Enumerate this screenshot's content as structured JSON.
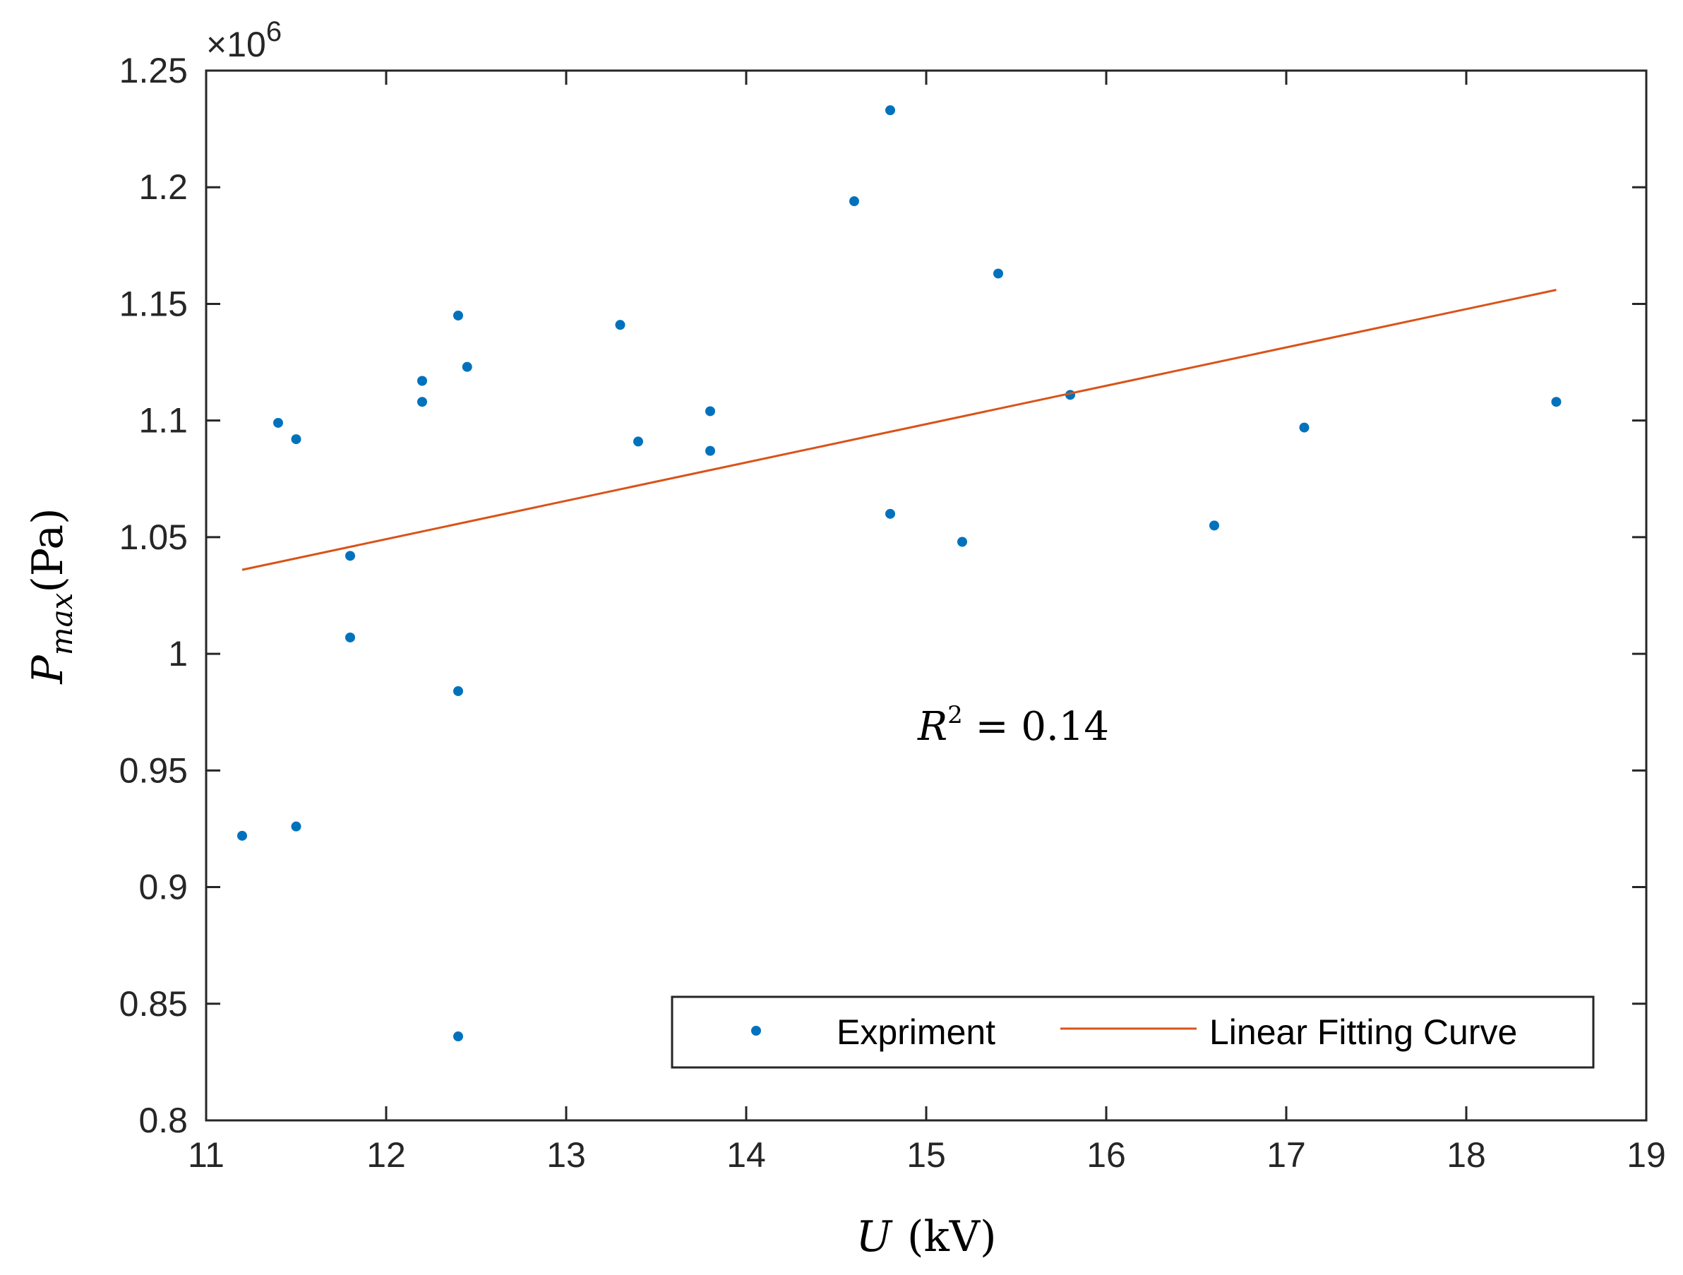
{
  "chart_data": {
    "type": "scatter",
    "title": "",
    "xlabel_var": "U",
    "xlabel_unit": "(kV)",
    "ylabel_var": "P",
    "ylabel_sub": "max",
    "ylabel_unit": "(Pa)",
    "y_exponent_base": "×10",
    "y_exponent_power": "6",
    "xlim": [
      11,
      19
    ],
    "ylim": [
      0.8,
      1.25
    ],
    "xticks": [
      11,
      12,
      13,
      14,
      15,
      16,
      17,
      18,
      19
    ],
    "yticks": [
      0.8,
      0.85,
      0.9,
      0.95,
      1,
      1.05,
      1.1,
      1.15,
      1.2,
      1.25
    ],
    "xtick_labels": [
      "11",
      "12",
      "13",
      "14",
      "15",
      "16",
      "17",
      "18",
      "19"
    ],
    "ytick_labels": [
      "0.8",
      "0.85",
      "0.9",
      "0.95",
      "1",
      "1.05",
      "1.1",
      "1.15",
      "1.2",
      "1.25"
    ],
    "grid": false,
    "series": [
      {
        "name": "Expriment",
        "kind": "scatter",
        "color": "#0072BD",
        "x": [
          11.2,
          11.4,
          11.5,
          11.5,
          11.8,
          11.8,
          12.2,
          12.2,
          12.4,
          12.4,
          12.4,
          12.45,
          13.3,
          13.4,
          13.8,
          13.8,
          14.6,
          14.8,
          14.8,
          15.2,
          15.4,
          15.8,
          16.6,
          17.1,
          18.5
        ],
        "y": [
          0.922,
          1.099,
          0.926,
          1.092,
          1.042,
          1.007,
          1.117,
          1.108,
          0.984,
          0.836,
          1.145,
          1.123,
          1.141,
          1.091,
          1.104,
          1.087,
          1.194,
          1.233,
          1.06,
          1.048,
          1.163,
          1.111,
          1.055,
          1.097,
          1.108
        ]
      },
      {
        "name": "Linear Fitting Curve",
        "kind": "line",
        "color": "#D95319",
        "x": [
          11.2,
          18.5
        ],
        "y": [
          1.036,
          1.156
        ]
      }
    ],
    "annotation": {
      "var": "R",
      "power": "2",
      "text": " = 0.14"
    },
    "legend": {
      "position": "bottom-right",
      "entries": [
        "Expriment",
        "Linear Fitting Curve"
      ]
    }
  }
}
